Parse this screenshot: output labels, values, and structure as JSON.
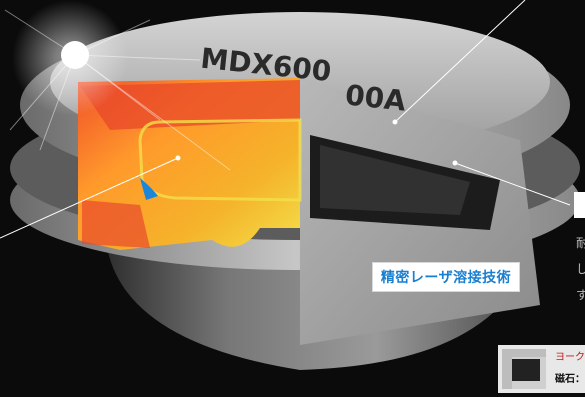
{
  "engraving": {
    "line1": "MDX600",
    "line2": "00A"
  },
  "callout": {
    "label": "精密レーザ溶接技術"
  },
  "right_text": {
    "lines": [
      "耐",
      "し",
      "す"
    ]
  },
  "inset": {
    "title": "ヨーク",
    "sub": "磁石："
  }
}
